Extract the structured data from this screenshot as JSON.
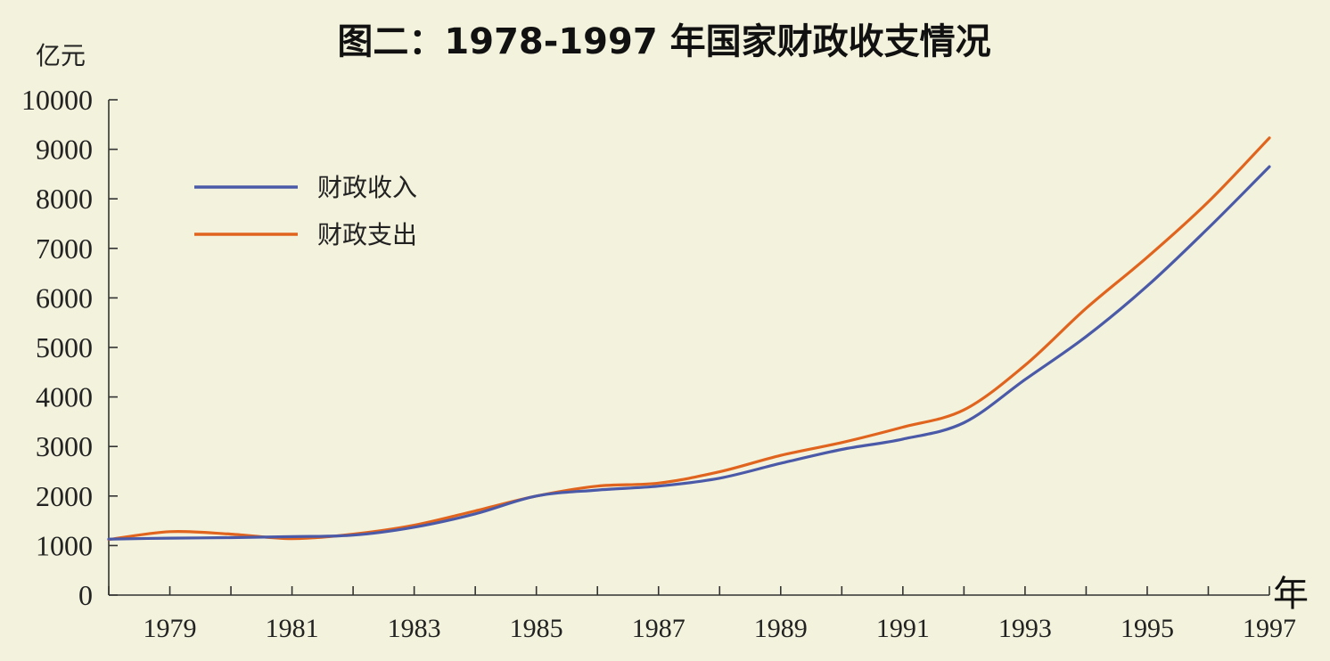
{
  "chart_data": {
    "type": "line",
    "title": "图二：1978-1997 年国家财政收支情况",
    "ylabel": "亿元",
    "xlabel": "年",
    "ylim": [
      0,
      10000
    ],
    "xlim": [
      1978,
      1997
    ],
    "yticks": [
      0,
      1000,
      2000,
      3000,
      4000,
      5000,
      6000,
      7000,
      8000,
      9000,
      10000
    ],
    "xticks": [
      1979,
      1981,
      1983,
      1985,
      1987,
      1989,
      1991,
      1993,
      1995,
      1997
    ],
    "legend_position": "upper-left",
    "x": [
      1978,
      1979,
      1980,
      1981,
      1982,
      1983,
      1984,
      1985,
      1986,
      1987,
      1988,
      1989,
      1990,
      1991,
      1992,
      1993,
      1994,
      1995,
      1996,
      1997
    ],
    "series": [
      {
        "name": "财政收入",
        "color": "#4a5aa8",
        "values": [
          1130,
          1150,
          1160,
          1180,
          1210,
          1370,
          1640,
          2000,
          2120,
          2200,
          2360,
          2660,
          2940,
          3150,
          3480,
          4350,
          5220,
          6240,
          7410,
          8650
        ]
      },
      {
        "name": "财政支出",
        "color": "#e0641e",
        "values": [
          1120,
          1280,
          1230,
          1140,
          1230,
          1410,
          1700,
          2000,
          2200,
          2260,
          2490,
          2820,
          3080,
          3390,
          3740,
          4640,
          5790,
          6820,
          7940,
          9230
        ]
      }
    ]
  }
}
